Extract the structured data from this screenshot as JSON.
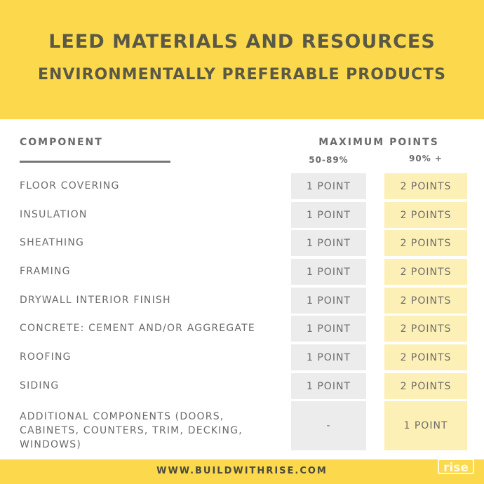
{
  "header": {
    "title": "LEED MATERIALS AND RESOURCES",
    "subtitle": "ENVIRONMENTALLY PREFERABLE PRODUCTS"
  },
  "table": {
    "columns": [
      "COMPONENT",
      "MAXIMUM POINTS"
    ],
    "subcolumns": [
      "50-89%",
      "90% +"
    ],
    "rows": [
      [
        "FLOOR COVERING",
        "1 POINT",
        "2 POINTS"
      ],
      [
        "INSULATION",
        "1 POINT",
        "2 POINTS"
      ],
      [
        "SHEATHING",
        "1 POINT",
        "2 POINTS"
      ],
      [
        "FRAMING",
        "1 POINT",
        "2 POINTS"
      ],
      [
        "DRYWALL INTERIOR FINISH",
        "1 POINT",
        "2 POINTS"
      ],
      [
        "CONCRETE: CEMENT AND/OR AGGREGATE",
        "1 POINT",
        "2 POINTS"
      ],
      [
        "ROOFING",
        "1 POINT",
        "2 POINTS"
      ],
      [
        "SIDING",
        "1 POINT",
        "2 POINTS"
      ],
      [
        "ADDITIONAL COMPONENTS (DOORS, CABINETS, COUNTERS, TRIM, DECKING, WINDOWS)",
        "-",
        "1 POINT"
      ]
    ]
  },
  "footer": {
    "url": "WWW.BUILDWITHRISE.COM",
    "logo": "rise"
  }
}
